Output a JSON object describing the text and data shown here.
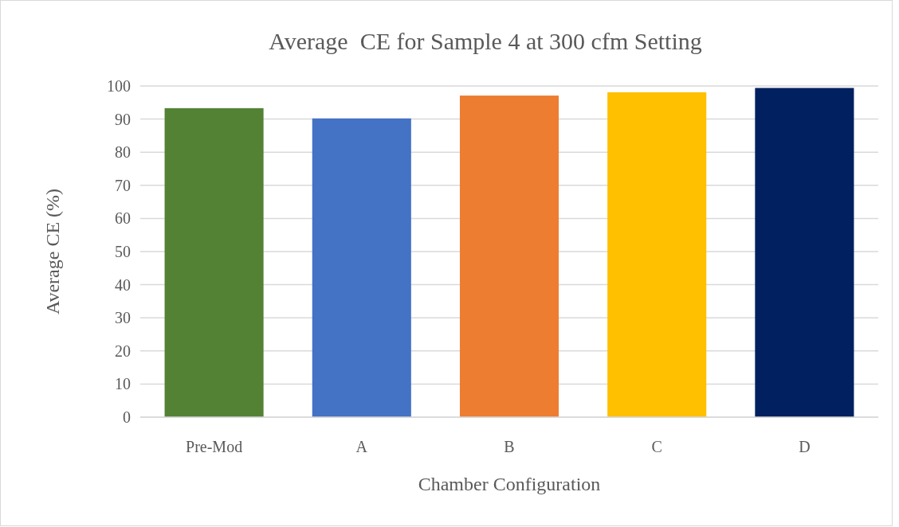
{
  "chart_data": {
    "type": "bar",
    "title": "Average  CE for Sample 4 at 300 cfm Setting",
    "xlabel": "Chamber Configuration",
    "ylabel": "Average CE (%)",
    "categories": [
      "Pre-Mod",
      "A",
      "B",
      "C",
      "D"
    ],
    "values": [
      93.3,
      90.2,
      97.1,
      98.1,
      99.4
    ],
    "colors": [
      "#548235",
      "#4472c4",
      "#ed7d31",
      "#ffc000",
      "#002060"
    ],
    "ylim": [
      0,
      100
    ],
    "yticks": [
      0,
      10,
      20,
      30,
      40,
      50,
      60,
      70,
      80,
      90,
      100
    ],
    "grid": "y"
  }
}
